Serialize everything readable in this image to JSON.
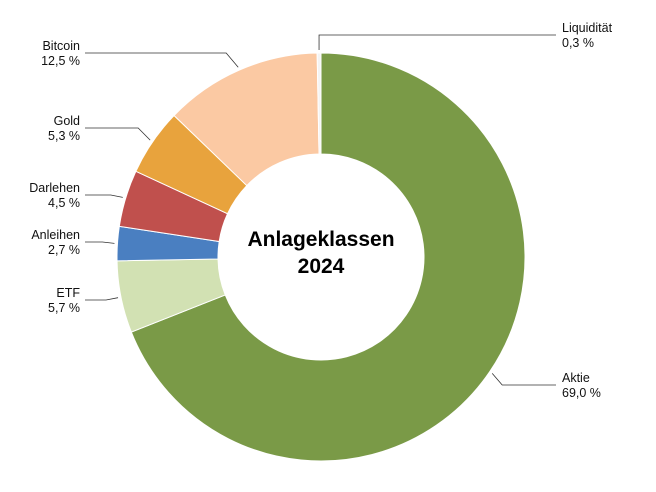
{
  "chart_data": {
    "type": "donut",
    "title": "Anlageklassen 2024",
    "categories": [
      "Aktie",
      "ETF",
      "Anleihen",
      "Darlehen",
      "Gold",
      "Bitcoin",
      "Liquidität"
    ],
    "values": [
      69.0,
      5.7,
      2.7,
      4.5,
      5.3,
      12.5,
      0.3
    ],
    "value_labels": [
      "69,0 %",
      "5,7 %",
      "2,7 %",
      "4,5 %",
      "5,3 %",
      "12,5 %",
      "0,3 %"
    ],
    "colors": [
      "#7a9a47",
      "#d2e1b3",
      "#4a7fc1",
      "#c0504d",
      "#e8a33d",
      "#fbc9a3",
      "#f4f4f4"
    ]
  }
}
